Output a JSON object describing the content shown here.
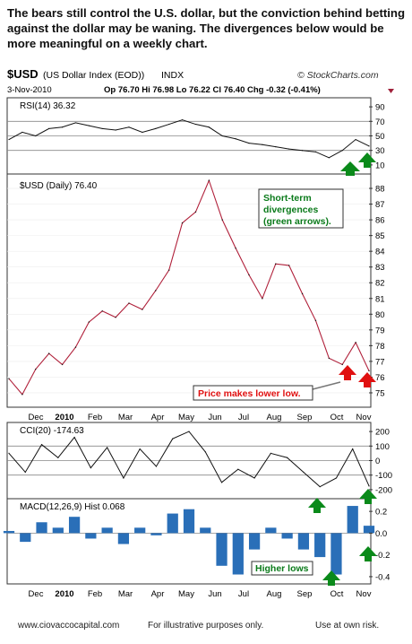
{
  "headline": "The bears still control the U.S. dollar, but the conviction behind betting against the dollar may be waning.  The divergences below would be more meaningful on a weekly chart.",
  "header": {
    "symbol": "$USD",
    "name": "(US Dollar Index (EOD))",
    "exchange": "INDX",
    "brand": "© StockCharts.com",
    "date": "3-Nov-2010",
    "quote": "Op 76.70  Hi 76.98  Lo 76.22  Cl 76.40  Chg -0.32 (-0.41%)"
  },
  "footer": {
    "site": "www.ciovaccocapital.com",
    "disclaimer": "For illustrative purposes only.",
    "risk": "Use at own risk."
  },
  "colors": {
    "price_line": "#b0203a",
    "rsi_fill": "#6aa06a",
    "rsi_down_fill": "#a06060",
    "hist": "#2a6fb8",
    "annotation_green": "#0a7a1a",
    "annotation_red": "#e01010"
  },
  "chart_data": [
    {
      "type": "line",
      "panel": "rsi",
      "legend": "RSI(14) 36.32",
      "yticks": [
        10,
        30,
        50,
        70,
        90
      ],
      "ylim": [
        0,
        100
      ],
      "reference_lines": [
        30,
        50,
        70
      ],
      "x": [
        "Dec",
        "Dec",
        "Dec",
        "Jan",
        "Jan",
        "Jan",
        "Feb",
        "Feb",
        "Mar",
        "Mar",
        "Apr",
        "Apr",
        "May",
        "May",
        "May",
        "Jun",
        "Jun",
        "Jul",
        "Jul",
        "Aug",
        "Aug",
        "Aug",
        "Sep",
        "Sep",
        "Oct",
        "Oct",
        "Oct",
        "Nov"
      ],
      "values": [
        45,
        55,
        50,
        60,
        62,
        68,
        64,
        60,
        58,
        62,
        55,
        60,
        66,
        72,
        66,
        62,
        50,
        46,
        40,
        38,
        35,
        32,
        30,
        28,
        20,
        30,
        45,
        36
      ]
    },
    {
      "type": "line",
      "panel": "price",
      "legend": "$USD (Daily) 76.40",
      "yticks": [
        75,
        76,
        77,
        78,
        79,
        80,
        81,
        82,
        83,
        84,
        85,
        86,
        87,
        88
      ],
      "ylim": [
        74.2,
        88.8
      ],
      "xticks": [
        "Dec",
        "2010",
        "Feb",
        "Mar",
        "Apr",
        "May",
        "Jun",
        "Jul",
        "Aug",
        "Sep",
        "Oct",
        "Nov"
      ],
      "x": [
        "Nov",
        "Dec",
        "Dec",
        "Dec",
        "Jan",
        "Jan",
        "Feb",
        "Feb",
        "Mar",
        "Mar",
        "Apr",
        "Apr",
        "May",
        "May",
        "May",
        "Jun",
        "Jun",
        "Jul",
        "Jul",
        "Aug",
        "Aug",
        "Aug",
        "Sep",
        "Sep",
        "Oct",
        "Oct",
        "Oct",
        "Nov"
      ],
      "values": [
        75.9,
        74.9,
        76.5,
        77.5,
        76.8,
        77.9,
        79.5,
        80.2,
        79.8,
        80.7,
        80.3,
        81.5,
        82.8,
        85.8,
        86.5,
        88.5,
        86.0,
        84.2,
        82.5,
        81.0,
        83.2,
        83.1,
        81.3,
        79.6,
        77.2,
        76.8,
        78.2,
        76.4
      ],
      "annotations": [
        {
          "text": "Short-term divergences (green arrows).",
          "color": "#0a7a1a"
        },
        {
          "text": "Price makes lower low.",
          "color": "#e01010"
        }
      ]
    },
    {
      "type": "line",
      "panel": "cci",
      "legend": "CCI(20) -174.63",
      "yticks": [
        200,
        100,
        0,
        -100,
        -200
      ],
      "ylim": [
        -250,
        250
      ],
      "reference_lines": [
        100,
        0,
        -100
      ],
      "x": [
        "Dec",
        "Dec",
        "Jan",
        "Jan",
        "Feb",
        "Feb",
        "Mar",
        "Mar",
        "Apr",
        "Apr",
        "May",
        "May",
        "Jun",
        "Jun",
        "Jul",
        "Jul",
        "Aug",
        "Aug",
        "Sep",
        "Sep",
        "Oct",
        "Oct",
        "Nov"
      ],
      "values": [
        50,
        -80,
        110,
        20,
        160,
        -50,
        90,
        -120,
        80,
        -40,
        150,
        200,
        60,
        -150,
        -60,
        -120,
        50,
        20,
        -80,
        -180,
        -120,
        80,
        -175
      ]
    },
    {
      "type": "bar",
      "panel": "macd_hist",
      "legend": "MACD(12,26,9) Hist 0.068",
      "yticks": [
        0.2,
        0.0,
        -0.2,
        -0.4
      ],
      "ylim": [
        -0.45,
        0.3
      ],
      "xticks": [
        "Dec",
        "2010",
        "Feb",
        "Mar",
        "Apr",
        "May",
        "Jun",
        "Jul",
        "Aug",
        "Sep",
        "Oct",
        "Nov"
      ],
      "x": [
        "Dec",
        "Dec",
        "Jan",
        "Jan",
        "Feb",
        "Feb",
        "Mar",
        "Mar",
        "Apr",
        "Apr",
        "May",
        "May",
        "Jun",
        "Jun",
        "Jul",
        "Jul",
        "Aug",
        "Aug",
        "Sep",
        "Sep",
        "Oct",
        "Oct",
        "Nov"
      ],
      "values": [
        0.02,
        -0.08,
        0.1,
        0.05,
        0.15,
        -0.05,
        0.05,
        -0.1,
        0.05,
        -0.02,
        0.18,
        0.22,
        0.05,
        -0.3,
        -0.38,
        -0.15,
        0.05,
        -0.05,
        -0.15,
        -0.22,
        -0.38,
        0.25,
        0.068
      ],
      "annotations": [
        {
          "text": "Higher lows",
          "color": "#0a7a1a"
        }
      ]
    }
  ]
}
